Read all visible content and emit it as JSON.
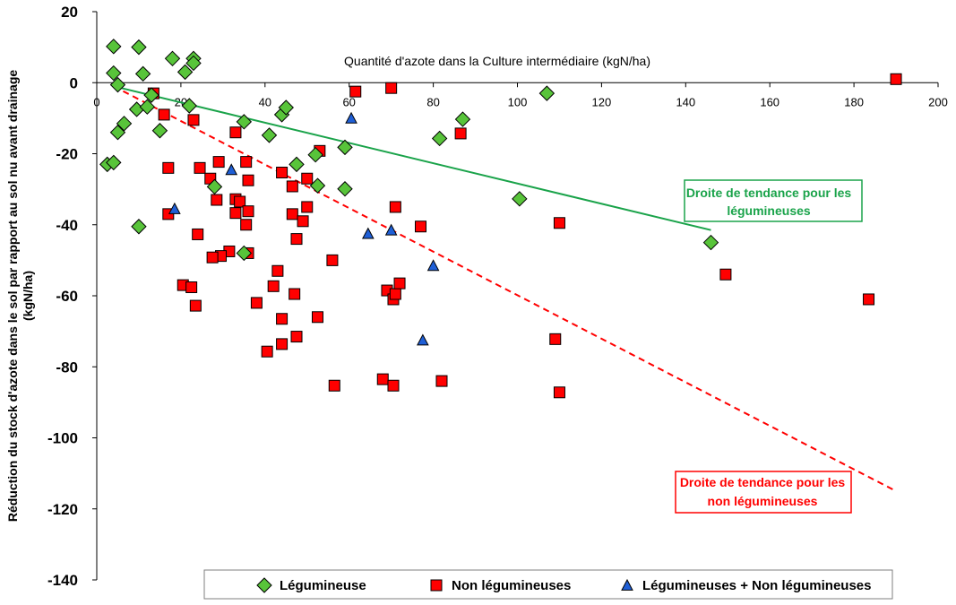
{
  "chart_data": {
    "type": "scatter",
    "xlabel": "Quantité d'azote dans la Culture intermédiaire (kgN/ha)",
    "ylabel_line1": "Réduction du stock d'azote dans le sol par rapport au sol nu avant drainage",
    "ylabel_line2": "(kgN/ha)",
    "xlim": [
      0,
      200
    ],
    "ylim": [
      -140,
      20
    ],
    "xticks": [
      0,
      20,
      40,
      60,
      80,
      100,
      120,
      140,
      160,
      180,
      200
    ],
    "yticks": [
      -140,
      -120,
      -100,
      -80,
      -60,
      -40,
      -20,
      0,
      20
    ],
    "legend_position": "bottom",
    "series": [
      {
        "name": "Légumineuse",
        "color": "#58c43a",
        "marker": "diamond",
        "points": [
          [
            4,
            10.2
          ],
          [
            10,
            10
          ],
          [
            4,
            2.7
          ],
          [
            11,
            2.5
          ],
          [
            18,
            6.8
          ],
          [
            23,
            6.8
          ],
          [
            23,
            5.5
          ],
          [
            21,
            3
          ],
          [
            5,
            -0.6
          ],
          [
            13,
            -3.5
          ],
          [
            9.5,
            -7.5
          ],
          [
            12,
            -6.8
          ],
          [
            6.5,
            -11.5
          ],
          [
            5,
            -14
          ],
          [
            15,
            -13.5
          ],
          [
            2.5,
            -23
          ],
          [
            4,
            -22.5
          ],
          [
            10,
            -40.5
          ],
          [
            22,
            -6.5
          ],
          [
            35,
            -11
          ],
          [
            41,
            -14.8
          ],
          [
            44,
            -9
          ],
          [
            45,
            -7
          ],
          [
            47.5,
            -23
          ],
          [
            52,
            -20.3
          ],
          [
            52.5,
            -29
          ],
          [
            59,
            -18.2
          ],
          [
            59,
            -29.9
          ],
          [
            28,
            -29.3
          ],
          [
            35,
            -48
          ],
          [
            81.5,
            -15.7
          ],
          [
            87,
            -10.3
          ],
          [
            107,
            -3
          ],
          [
            100.5,
            -32.7
          ],
          [
            146,
            -45
          ]
        ]
      },
      {
        "name": "Non légumineuses",
        "color": "#ff0000",
        "marker": "square",
        "points": [
          [
            13.5,
            -3
          ],
          [
            16,
            -9
          ],
          [
            23,
            -10.5
          ],
          [
            17,
            -24
          ],
          [
            17,
            -37
          ],
          [
            24.5,
            -24
          ],
          [
            27,
            -27
          ],
          [
            28.5,
            -33
          ],
          [
            29,
            -22.3
          ],
          [
            33,
            -14
          ],
          [
            35.5,
            -22.3
          ],
          [
            36,
            -27.5
          ],
          [
            33,
            -32.8
          ],
          [
            34,
            -33.5
          ],
          [
            33,
            -36.7
          ],
          [
            35.5,
            -40
          ],
          [
            36,
            -36.2
          ],
          [
            36,
            -48
          ],
          [
            31.5,
            -47.5
          ],
          [
            29.5,
            -48.8
          ],
          [
            27.5,
            -49.2
          ],
          [
            24,
            -42.7
          ],
          [
            20.5,
            -57
          ],
          [
            22.5,
            -57.6
          ],
          [
            23.5,
            -62.8
          ],
          [
            38,
            -62
          ],
          [
            40.5,
            -75.7
          ],
          [
            42,
            -57.3
          ],
          [
            43,
            -53
          ],
          [
            44,
            -66.5
          ],
          [
            44,
            -73.6
          ],
          [
            44,
            -25.3
          ],
          [
            46.5,
            -29.2
          ],
          [
            46.5,
            -37
          ],
          [
            47.5,
            -44
          ],
          [
            47,
            -59.5
          ],
          [
            47.5,
            -71.5
          ],
          [
            49,
            -39
          ],
          [
            50,
            -35
          ],
          [
            50,
            -27
          ],
          [
            52.5,
            -66
          ],
          [
            53,
            -19.2
          ],
          [
            56,
            -50
          ],
          [
            56.5,
            -85.3
          ],
          [
            61.5,
            -2.5
          ],
          [
            68,
            -83.5
          ],
          [
            69,
            -58.5
          ],
          [
            70,
            -1.5
          ],
          [
            70.5,
            -61
          ],
          [
            71,
            -35
          ],
          [
            71,
            -59.5
          ],
          [
            72,
            -56.5
          ],
          [
            70.5,
            -85.3
          ],
          [
            77,
            -40.5
          ],
          [
            82,
            -84
          ],
          [
            86.5,
            -14.3
          ],
          [
            109,
            -72.2
          ],
          [
            110,
            -87.2
          ],
          [
            110,
            -39.5
          ],
          [
            149.5,
            -54
          ],
          [
            183.5,
            -61
          ],
          [
            190,
            1
          ]
        ]
      },
      {
        "name": "Légumineuses + Non légumineuses",
        "color": "#1f5fd6",
        "marker": "triangle",
        "points": [
          [
            18.5,
            -35.5
          ],
          [
            32,
            -24.5
          ],
          [
            60.5,
            -10
          ],
          [
            64.5,
            -42.5
          ],
          [
            70,
            -41.5
          ],
          [
            77.5,
            -72.5
          ],
          [
            80,
            -51.5
          ]
        ]
      }
    ],
    "trendlines": [
      {
        "name": "Droite de tendance pour les légumineuses",
        "line1": "Droite de tendance pour les",
        "line2": "légumineuses",
        "color": "#1aa34a",
        "style": "solid",
        "from": [
          4,
          -1
        ],
        "to": [
          146,
          -41.5
        ]
      },
      {
        "name": "Droite de tendance pour les non légumineuses",
        "line1": "Droite de tendance pour les",
        "line2": "non légumineuses",
        "color": "#ff0000",
        "style": "dashed",
        "from": [
          4,
          -1
        ],
        "to": [
          190,
          -115
        ]
      }
    ]
  }
}
